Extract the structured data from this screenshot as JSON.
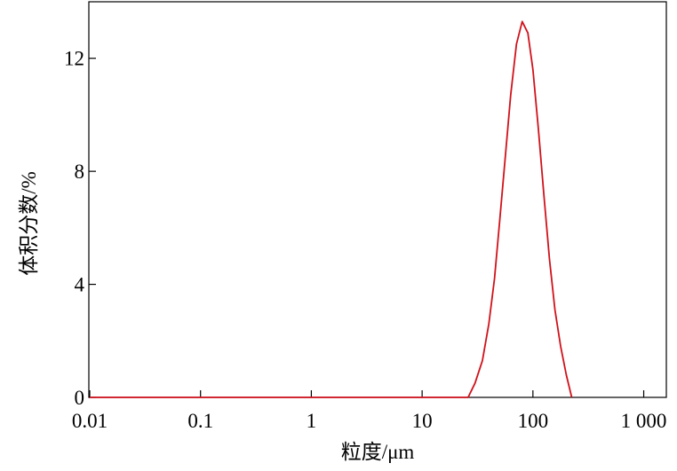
{
  "chart_data": {
    "type": "line",
    "xlabel": "粒度/μm",
    "ylabel": "体积分数/%",
    "xscale": "log",
    "xlim": [
      0.01,
      1600
    ],
    "ylim": [
      0,
      14
    ],
    "xticks": [
      0.01,
      0.1,
      1,
      10,
      100,
      {
        "value": 1000,
        "label": "1 000"
      }
    ],
    "yticks": [
      0,
      4,
      8,
      12
    ],
    "series": [
      {
        "color": "#d0121b",
        "x": [
          0.01,
          0.1,
          1,
          10,
          26,
          30,
          35,
          40,
          45,
          50,
          56,
          63,
          71,
          80,
          90,
          100,
          112,
          126,
          141,
          158,
          178,
          200,
          224
        ],
        "values": [
          0,
          0,
          0,
          0,
          0,
          0.5,
          1.3,
          2.6,
          4.2,
          6.2,
          8.4,
          10.7,
          12.5,
          13.3,
          12.9,
          11.6,
          9.5,
          7.1,
          4.9,
          3.1,
          1.8,
          0.8,
          0
        ]
      }
    ]
  }
}
